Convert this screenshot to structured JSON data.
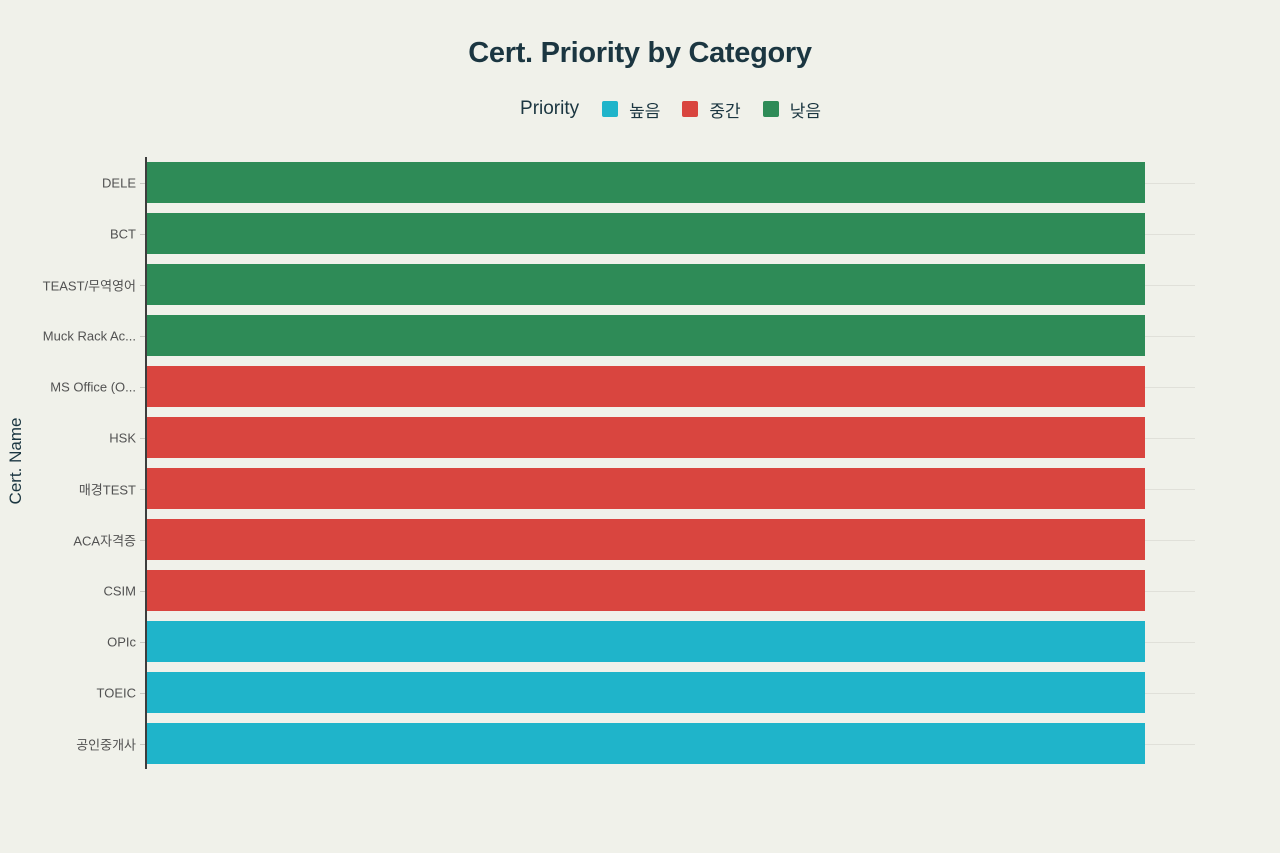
{
  "chart_data": {
    "type": "bar",
    "orientation": "horizontal",
    "title": "Cert. Priority by Category",
    "legend_title": "Priority",
    "legend_position": "top-center",
    "legend": [
      {
        "label": "높음",
        "color": "#1fb4ca"
      },
      {
        "label": "중간",
        "color": "#d9453f"
      },
      {
        "label": "낮음",
        "color": "#2e8b57"
      }
    ],
    "xlabel": "",
    "ylabel": "Cert. Name",
    "xlim": [
      0,
      1.05
    ],
    "grid": "horizontal-category-lines",
    "x_tick_labels": [],
    "categories": [
      "DELE",
      "BCT",
      "TEAST/무역영어",
      "Muck Rack Ac...",
      "MS Office (O...",
      "HSK",
      "매경TEST",
      "ACA자격증",
      "CSIM",
      "OPIc",
      "TOEIC",
      "공인중개사"
    ],
    "values": [
      1,
      1,
      1,
      1,
      1,
      1,
      1,
      1,
      1,
      1,
      1,
      1
    ],
    "bar_priorities": [
      "낮음",
      "낮음",
      "낮음",
      "낮음",
      "중간",
      "중간",
      "중간",
      "중간",
      "중간",
      "높음",
      "높음",
      "높음"
    ]
  },
  "colors": {
    "background": "#f0f1ea",
    "axis_line": "#3d3d3d",
    "gridline": "#e0e0d9",
    "tick": "#c9c9c2",
    "title_text": "#1b3641",
    "label_text": "#525252",
    "high_priority": "#1fb4ca",
    "mid_priority": "#d9453f",
    "low_priority": "#2e8b57"
  }
}
